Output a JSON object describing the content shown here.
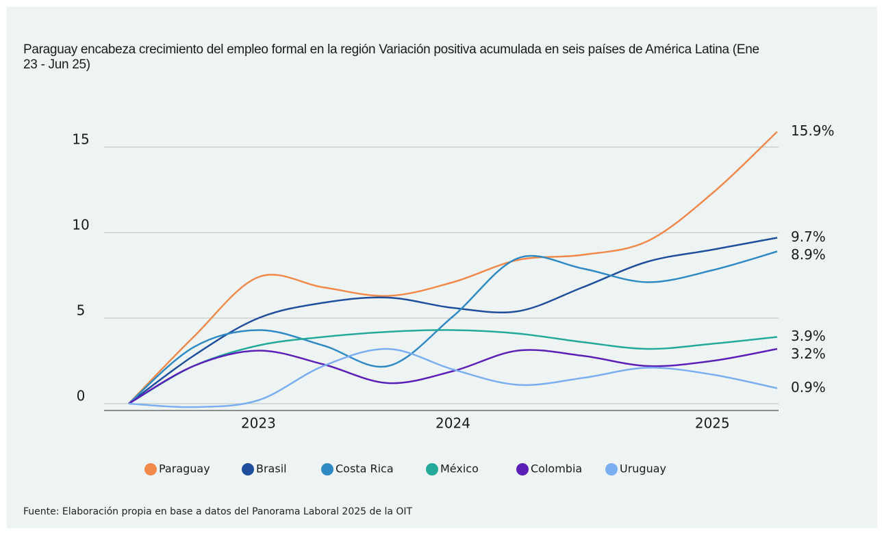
{
  "chart_data": {
    "type": "line",
    "title": "Paraguay encabeza crecimiento del empleo formal en la región Variación positiva acumulada en seis países de América Latina (Ene 23 - Jun 25)",
    "source": "Fuente: Elaboración propia en base a datos del Panorama Laboral 2025 de la OIT",
    "categories": [
      null,
      null,
      "2023",
      null,
      null,
      "2024",
      null,
      null,
      null,
      "2025",
      null
    ],
    "ylim": [
      -0.4,
      16
    ],
    "yticks": [
      0,
      5,
      10,
      15
    ],
    "grid": true,
    "series": [
      {
        "name": "Paraguay",
        "color": "#f0894a",
        "values": [
          0,
          3.9,
          7.4,
          6.8,
          6.3,
          7.1,
          8.4,
          8.7,
          9.5,
          12.3,
          15.9
        ],
        "value_labels": [
          null,
          null,
          null,
          null,
          null,
          null,
          null,
          null,
          null,
          null,
          "15.9%"
        ]
      },
      {
        "name": "Brasil",
        "color": "#1f4e9c",
        "values": [
          0,
          2.8,
          5.0,
          5.9,
          6.2,
          5.6,
          5.4,
          6.8,
          8.3,
          9.0,
          9.7
        ],
        "value_labels": [
          null,
          null,
          null,
          null,
          null,
          null,
          null,
          null,
          null,
          null,
          "9.7%"
        ]
      },
      {
        "name": "Costa Rica",
        "color": "#2f8ac4",
        "values": [
          0,
          3.3,
          4.3,
          3.4,
          2.2,
          5.1,
          8.5,
          7.9,
          7.1,
          7.8,
          8.9
        ],
        "value_labels": [
          null,
          null,
          null,
          null,
          null,
          null,
          null,
          null,
          null,
          null,
          "8.9%"
        ]
      },
      {
        "name": "México",
        "color": "#23a99a",
        "values": [
          0,
          2.2,
          3.4,
          3.9,
          4.2,
          4.3,
          4.1,
          3.6,
          3.2,
          3.5,
          3.9
        ],
        "value_labels": [
          null,
          null,
          null,
          null,
          null,
          null,
          null,
          null,
          null,
          null,
          "3.9%"
        ]
      },
      {
        "name": "Colombia",
        "color": "#5b1fb8",
        "values": [
          0,
          2.2,
          3.1,
          2.3,
          1.2,
          1.9,
          3.1,
          2.8,
          2.2,
          2.5,
          3.2
        ],
        "value_labels": [
          null,
          null,
          null,
          null,
          null,
          null,
          null,
          null,
          null,
          null,
          "3.2%"
        ]
      },
      {
        "name": "Uruguay",
        "color": "#7aaef0",
        "values": [
          0,
          -0.2,
          0.2,
          2.2,
          3.2,
          2.0,
          1.1,
          1.5,
          2.1,
          1.7,
          0.9
        ],
        "value_labels": [
          null,
          null,
          null,
          null,
          null,
          null,
          null,
          null,
          null,
          null,
          "0.9%"
        ]
      }
    ]
  }
}
